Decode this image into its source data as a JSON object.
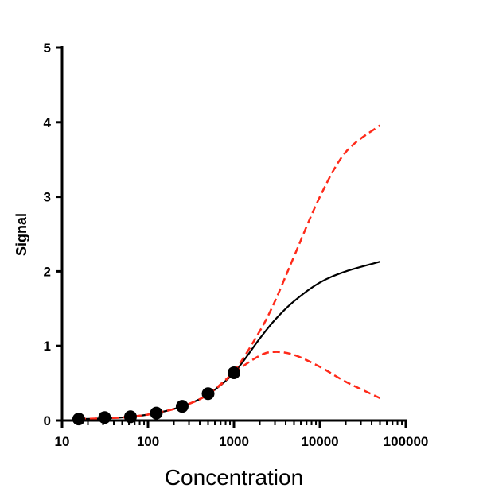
{
  "chart_data": {
    "type": "scatter",
    "title": "",
    "xlabel": "Concentration",
    "ylabel": "Signal",
    "xscale": "log",
    "xlim": [
      10,
      100000
    ],
    "ylim": [
      0,
      5
    ],
    "xticks": [
      "10",
      "100",
      "1000",
      "10000",
      "100000"
    ],
    "yticks": [
      "0",
      "1",
      "2",
      "3",
      "4",
      "5"
    ],
    "grid": false,
    "points": {
      "x": [
        15.625,
        31.25,
        62.5,
        125,
        250,
        500,
        1000
      ],
      "y": [
        0.02,
        0.04,
        0.05,
        0.1,
        0.19,
        0.36,
        0.64
      ],
      "color": "#000000"
    },
    "curves": [
      {
        "style": "solid",
        "color": "#000000",
        "x": [
          15.625,
          31.25,
          62.5,
          125,
          250,
          500,
          1000,
          2000,
          3000,
          5000,
          10000,
          20000,
          50000
        ],
        "y": [
          0.02,
          0.03,
          0.05,
          0.1,
          0.19,
          0.35,
          0.64,
          1.1,
          1.35,
          1.6,
          1.85,
          2.0,
          2.13
        ]
      },
      {
        "style": "dashed",
        "color": "#ff2a1a",
        "x": [
          15.625,
          31.25,
          62.5,
          125,
          250,
          500,
          1000,
          2000,
          3000,
          5000,
          10000,
          20000,
          50000
        ],
        "y": [
          0.02,
          0.03,
          0.05,
          0.1,
          0.19,
          0.35,
          0.66,
          1.2,
          1.6,
          2.2,
          3.0,
          3.6,
          3.96
        ]
      },
      {
        "style": "dashed",
        "color": "#ff2a1a",
        "x": [
          15.625,
          31.25,
          62.5,
          125,
          250,
          500,
          1000,
          2000,
          3000,
          5000,
          10000,
          20000,
          50000
        ],
        "y": [
          0.02,
          0.03,
          0.05,
          0.1,
          0.19,
          0.35,
          0.64,
          0.87,
          0.92,
          0.88,
          0.72,
          0.52,
          0.3
        ]
      }
    ]
  }
}
